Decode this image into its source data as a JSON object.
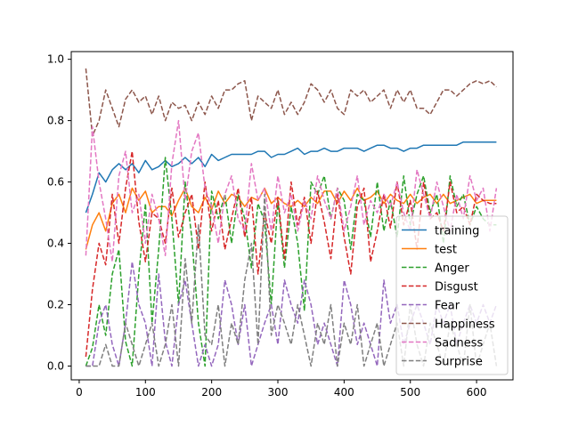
{
  "chart_data": {
    "type": "line",
    "title": "",
    "xlabel": "",
    "ylabel": "",
    "xlim": [
      -12,
      655
    ],
    "ylim": [
      -0.045,
      1.025
    ],
    "xticks": [
      0,
      100,
      200,
      300,
      400,
      500,
      600
    ],
    "yticks": [
      0.0,
      0.2,
      0.4,
      0.6,
      0.8,
      1.0
    ],
    "xtick_labels": [
      "0",
      "100",
      "200",
      "300",
      "400",
      "500",
      "600"
    ],
    "ytick_labels": [
      "0.0",
      "0.2",
      "0.4",
      "0.6",
      "0.8",
      "1.0"
    ],
    "legend_position": "lower right",
    "x": [
      10,
      20,
      30,
      40,
      50,
      60,
      70,
      80,
      90,
      100,
      110,
      120,
      130,
      140,
      150,
      160,
      170,
      180,
      190,
      200,
      210,
      220,
      230,
      240,
      250,
      260,
      270,
      280,
      290,
      300,
      310,
      320,
      330,
      340,
      350,
      360,
      370,
      380,
      390,
      400,
      410,
      420,
      430,
      440,
      450,
      460,
      470,
      480,
      490,
      500,
      510,
      520,
      530,
      540,
      550,
      560,
      570,
      580,
      590,
      600,
      610,
      620,
      630
    ],
    "series": [
      {
        "name": "training",
        "color": "#1f77b4",
        "dash": "solid",
        "values": [
          0.5,
          0.56,
          0.63,
          0.6,
          0.64,
          0.66,
          0.64,
          0.66,
          0.63,
          0.67,
          0.64,
          0.65,
          0.67,
          0.65,
          0.66,
          0.68,
          0.66,
          0.68,
          0.65,
          0.69,
          0.67,
          0.68,
          0.69,
          0.69,
          0.69,
          0.69,
          0.7,
          0.7,
          0.68,
          0.69,
          0.69,
          0.7,
          0.71,
          0.69,
          0.7,
          0.7,
          0.71,
          0.7,
          0.7,
          0.71,
          0.71,
          0.71,
          0.7,
          0.71,
          0.72,
          0.72,
          0.71,
          0.71,
          0.7,
          0.71,
          0.71,
          0.72,
          0.72,
          0.72,
          0.72,
          0.72,
          0.72,
          0.73,
          0.73,
          0.73,
          0.73,
          0.73,
          0.73
        ]
      },
      {
        "name": "test",
        "color": "#ff7f0e",
        "dash": "solid",
        "values": [
          0.38,
          0.46,
          0.5,
          0.44,
          0.53,
          0.56,
          0.5,
          0.58,
          0.54,
          0.57,
          0.5,
          0.52,
          0.52,
          0.49,
          0.54,
          0.58,
          0.52,
          0.5,
          0.55,
          0.51,
          0.57,
          0.53,
          0.56,
          0.55,
          0.52,
          0.55,
          0.54,
          0.58,
          0.53,
          0.55,
          0.53,
          0.52,
          0.54,
          0.52,
          0.55,
          0.53,
          0.57,
          0.57,
          0.53,
          0.57,
          0.54,
          0.58,
          0.54,
          0.55,
          0.57,
          0.53,
          0.56,
          0.54,
          0.53,
          0.56,
          0.53,
          0.55,
          0.56,
          0.53,
          0.56,
          0.53,
          0.54,
          0.55,
          0.56,
          0.53,
          0.54,
          0.54,
          0.54
        ]
      },
      {
        "name": "Anger",
        "color": "#2ca02c",
        "dash": "dashed",
        "values": [
          0.0,
          0.06,
          0.2,
          0.1,
          0.3,
          0.38,
          0.08,
          0.0,
          0.3,
          0.53,
          0.14,
          0.38,
          0.68,
          0.48,
          0.2,
          0.6,
          0.42,
          0.14,
          0.0,
          0.57,
          0.48,
          0.56,
          0.4,
          0.56,
          0.48,
          0.32,
          0.53,
          0.47,
          0.2,
          0.54,
          0.32,
          0.52,
          0.4,
          0.18,
          0.6,
          0.56,
          0.62,
          0.48,
          0.58,
          0.54,
          0.38,
          0.56,
          0.54,
          0.42,
          0.6,
          0.44,
          0.54,
          0.42,
          0.62,
          0.46,
          0.56,
          0.62,
          0.5,
          0.56,
          0.4,
          0.62,
          0.52,
          0.56,
          0.46,
          0.52,
          0.48,
          0.46,
          0.46
        ]
      },
      {
        "name": "Disgust",
        "color": "#d62728",
        "dash": "dashed",
        "values": [
          0.03,
          0.25,
          0.4,
          0.33,
          0.56,
          0.4,
          0.58,
          0.7,
          0.47,
          0.34,
          0.5,
          0.48,
          0.4,
          0.58,
          0.42,
          0.5,
          0.56,
          0.38,
          0.6,
          0.44,
          0.54,
          0.38,
          0.48,
          0.58,
          0.42,
          0.55,
          0.3,
          0.5,
          0.4,
          0.55,
          0.35,
          0.6,
          0.46,
          0.55,
          0.4,
          0.57,
          0.47,
          0.35,
          0.56,
          0.42,
          0.3,
          0.52,
          0.58,
          0.34,
          0.44,
          0.56,
          0.45,
          0.6,
          0.46,
          0.54,
          0.38,
          0.6,
          0.48,
          0.5,
          0.44,
          0.6,
          0.5,
          0.52,
          0.46,
          0.56,
          0.54,
          0.53,
          0.53
        ]
      },
      {
        "name": "Fear",
        "color": "#9467bd",
        "dash": "dashed",
        "values": [
          0.0,
          0.0,
          0.14,
          0.2,
          0.07,
          0.0,
          0.14,
          0.34,
          0.2,
          0.14,
          0.0,
          0.3,
          0.08,
          0.0,
          0.2,
          0.28,
          0.14,
          0.0,
          0.07,
          0.0,
          0.07,
          0.28,
          0.2,
          0.07,
          0.2,
          0.0,
          0.07,
          0.14,
          0.2,
          0.07,
          0.28,
          0.2,
          0.14,
          0.28,
          0.2,
          0.07,
          0.14,
          0.07,
          0.0,
          0.28,
          0.2,
          0.07,
          0.14,
          0.07,
          0.0,
          0.28,
          0.14,
          0.2,
          0.07,
          0.14,
          0.2,
          0.14,
          0.07,
          0.2,
          0.14,
          0.2,
          0.07,
          0.14,
          0.2,
          0.14,
          0.2,
          0.14,
          0.2
        ]
      },
      {
        "name": "Happiness",
        "color": "#8c564b",
        "dash": "dashed",
        "values": [
          0.97,
          0.75,
          0.8,
          0.9,
          0.84,
          0.78,
          0.87,
          0.9,
          0.86,
          0.88,
          0.82,
          0.88,
          0.8,
          0.86,
          0.84,
          0.85,
          0.8,
          0.86,
          0.82,
          0.88,
          0.84,
          0.9,
          0.9,
          0.92,
          0.93,
          0.8,
          0.88,
          0.86,
          0.84,
          0.9,
          0.82,
          0.86,
          0.82,
          0.86,
          0.92,
          0.9,
          0.86,
          0.9,
          0.84,
          0.82,
          0.9,
          0.88,
          0.9,
          0.86,
          0.88,
          0.9,
          0.84,
          0.9,
          0.86,
          0.9,
          0.84,
          0.84,
          0.82,
          0.86,
          0.9,
          0.9,
          0.88,
          0.9,
          0.92,
          0.93,
          0.92,
          0.93,
          0.91
        ]
      },
      {
        "name": "Sadness",
        "color": "#e377c2",
        "dash": "dashed",
        "values": [
          0.36,
          0.78,
          0.6,
          0.48,
          0.34,
          0.62,
          0.7,
          0.5,
          0.56,
          0.4,
          0.56,
          0.48,
          0.36,
          0.66,
          0.8,
          0.54,
          0.7,
          0.76,
          0.58,
          0.52,
          0.4,
          0.56,
          0.62,
          0.48,
          0.44,
          0.66,
          0.54,
          0.58,
          0.44,
          0.62,
          0.5,
          0.56,
          0.44,
          0.54,
          0.48,
          0.62,
          0.54,
          0.48,
          0.58,
          0.44,
          0.52,
          0.62,
          0.46,
          0.54,
          0.5,
          0.56,
          0.52,
          0.6,
          0.5,
          0.44,
          0.64,
          0.56,
          0.48,
          0.6,
          0.52,
          0.44,
          0.56,
          0.48,
          0.62,
          0.54,
          0.58,
          0.44,
          0.58
        ]
      },
      {
        "name": "Surprise",
        "color": "#7f7f7f",
        "dash": "dashed",
        "values": [
          0.0,
          0.0,
          0.0,
          0.07,
          0.0,
          0.0,
          0.14,
          0.07,
          0.0,
          0.07,
          0.14,
          0.0,
          0.07,
          0.2,
          0.0,
          0.35,
          0.14,
          0.46,
          0.1,
          0.07,
          0.2,
          0.0,
          0.14,
          0.07,
          0.28,
          0.4,
          0.07,
          0.56,
          0.1,
          0.2,
          0.14,
          0.07,
          0.2,
          0.1,
          0.0,
          0.14,
          0.07,
          0.2,
          0.0,
          0.14,
          0.07,
          0.2,
          0.0,
          0.07,
          0.14,
          0.0,
          0.07,
          0.14,
          0.0,
          0.2,
          0.07,
          0.0,
          0.14,
          0.07,
          0.0,
          0.14,
          0.07,
          0.0,
          0.2,
          0.0,
          0.07,
          0.14,
          0.0
        ]
      }
    ]
  }
}
